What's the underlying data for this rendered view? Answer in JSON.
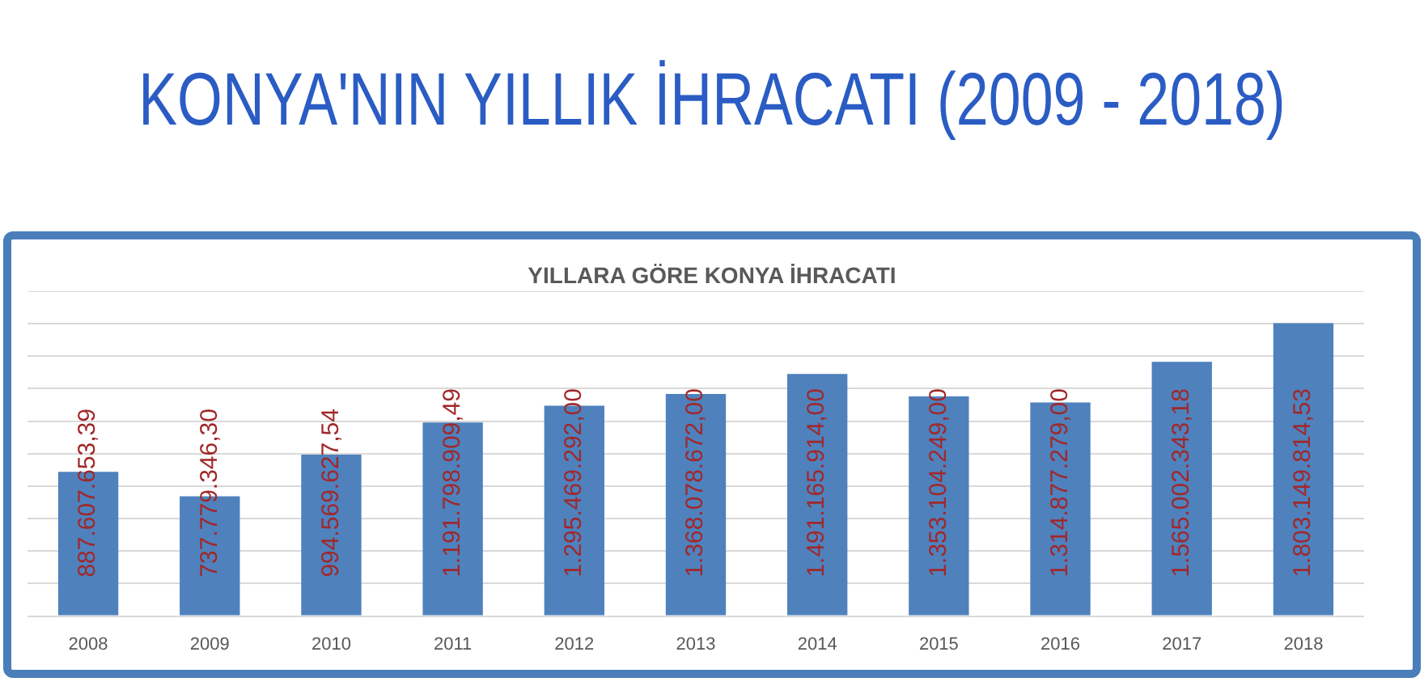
{
  "chart_data": {
    "type": "bar",
    "title": "KONYA'NIN YILLIK İHRACATI (2009 - 2018)",
    "subtitle": "YILLARA GÖRE KONYA İHRACATI",
    "categories": [
      "2008",
      "2009",
      "2010",
      "2011",
      "2012",
      "2013",
      "2014",
      "2015",
      "2016",
      "2017",
      "2018"
    ],
    "values": [
      887607653.39,
      737779346.3,
      994569627.54,
      1191798909.49,
      1295469292.0,
      1368078672.0,
      1491165914.0,
      1353104249.0,
      1314877279.0,
      1565002343.18,
      1803149814.53
    ],
    "value_labels": [
      "887.607.653,39",
      "737.779.346,30",
      "994.569.627,54",
      "1.191.798.909,49",
      "1.295.469.292,00",
      "1.368.078.672,00",
      "1.491.165.914,00",
      "1.353.104.249,00",
      "1.314.877.279,00",
      "1.565.002.343,18",
      "1.803.149.814,53"
    ],
    "color": "#4f81bd",
    "ylim": [
      0,
      2000000000
    ],
    "yticks": [
      {
        "value": 0,
        "label": null
      },
      {
        "value": 200000000,
        "label": null
      },
      {
        "value": 400000000,
        "label": null
      },
      {
        "value": 600000000,
        "label": null
      },
      {
        "value": 800000000,
        "label": null
      },
      {
        "value": 1000000000,
        "label": null
      },
      {
        "value": 1200000000,
        "label": null
      },
      {
        "value": 1400000000,
        "label": null
      },
      {
        "value": 1600000000,
        "label": null
      },
      {
        "value": 1800000000,
        "label": null
      },
      {
        "value": 2000000000,
        "label": null
      }
    ],
    "grid": "y",
    "tick_labels": "x",
    "legend": false
  }
}
